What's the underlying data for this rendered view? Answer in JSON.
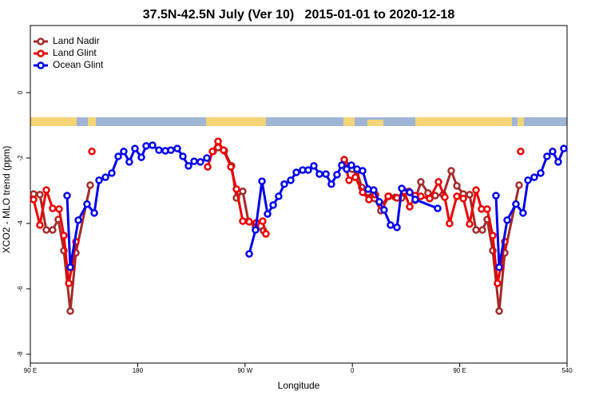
{
  "chart_data": {
    "type": "line",
    "title": "37.5N-42.5N July (Ver 10)   2015-01-01 to 2020-12-18",
    "x_label": "Longitude",
    "y_label": "XCO2 - MLO trend (ppm)",
    "xlim": [
      90,
      540
    ],
    "ylim": [
      -8.27,
      2.05
    ],
    "xticks": [
      {
        "value": 90,
        "label": "90 E"
      },
      180,
      {
        "value": 270,
        "label": "90 W"
      },
      {
        "value": 360,
        "label": "0"
      },
      {
        "value": 450,
        "label": "90 E"
      },
      540
    ],
    "yticks": [
      0,
      -2,
      -4,
      -6,
      -8
    ],
    "legend": "top-left",
    "series": [
      {
        "name": "Land Nadir",
        "color": "#a52a2a",
        "x": [
          92.7,
          98,
          103.4,
          108.7,
          113.4,
          118.1,
          123.5,
          128.2,
          140.2,
          null,
          243.3,
          247.4,
          252.7,
          258.7,
          262.8,
          268.1,
          272.8,
          278.8,
          285.5,
          null,
          353.8,
          359.8,
          363.9,
          367.9,
          373.2,
          378.6,
          383.9,
          390.6,
          396,
          401.4,
          407.4,
          412.7,
          417.4,
          423.4,
          429.5,
          436.2,
          442.9,
          447.6,
          453,
          458.3,
          463.7,
          469,
          473,
          477.7,
          483.1,
          487.8,
          499.8
        ],
        "values": [
          -3.1,
          -3.12,
          -4.2,
          -4.2,
          -3.88,
          -4.83,
          -6.68,
          -4.9,
          -2.83,
          null,
          -1.8,
          -1.68,
          -1.78,
          -2.24,
          -3.22,
          -3.02,
          -3.93,
          -4.12,
          -4.22,
          null,
          -2.17,
          -2.34,
          -2.41,
          -2.9,
          -3.05,
          -3.24,
          -3.61,
          -3.17,
          -3.2,
          -3.22,
          -3.02,
          -3.29,
          -2.73,
          -3.07,
          -3.15,
          -3.12,
          -2.39,
          -2.85,
          -3.1,
          -3.12,
          -4.2,
          -4.2,
          -3.88,
          -4.83,
          -6.68,
          -4.9,
          -2.83
        ]
      },
      {
        "name": "Land Glint",
        "color": "#ee0000",
        "x": [
          92.7,
          98,
          103.4,
          108.7,
          114.1,
          118.1,
          122.2,
          124.8,
          128.2,
          null,
          141.6,
          null,
          238.7,
          242.7,
          247.4,
          252,
          258.1,
          262.8,
          268.1,
          273.5,
          279.5,
          284.8,
          287.5,
          null,
          353.2,
          357.2,
          362.5,
          368.6,
          373.9,
          379.3,
          384.6,
          390,
          397.4,
          403.4,
          408.1,
          412.7,
          417.4,
          424.8,
          432.2,
          437.5,
          441.5,
          447.6,
          453,
          458.3,
          463.7,
          468.3,
          473,
          477.7,
          481.7,
          484.4,
          487.8,
          null,
          501.1
        ],
        "values": [
          -3.27,
          -4.05,
          -2.98,
          -3.54,
          -3.56,
          -4.37,
          -5.83,
          -5.34,
          -4.56,
          null,
          -1.8,
          null,
          -2.27,
          -1.8,
          -1.49,
          -1.76,
          -2.27,
          -2.95,
          -3.93,
          -3.95,
          -3.98,
          -3.93,
          -4.32,
          null,
          -2.05,
          -2.68,
          -2.59,
          -3.05,
          -3.27,
          -3.12,
          -3.46,
          -3.17,
          -3.22,
          -3.02,
          -3.49,
          -3.15,
          -3.17,
          -3.24,
          -2.73,
          -3.2,
          -4,
          -3.17,
          -3.24,
          -4.02,
          -2.98,
          -3.56,
          -3.56,
          -4.37,
          -5.83,
          -5.34,
          -4.56,
          null,
          -1.8
        ]
      },
      {
        "name": "Ocean Glint",
        "color": "#0000ee",
        "x": [
          120.8,
          123.5,
          130.2,
          137.5,
          143.6,
          147.6,
          153,
          158.3,
          163.7,
          168.3,
          173,
          177.7,
          183.1,
          187.1,
          192.4,
          197.8,
          203.2,
          207.8,
          213.2,
          217.9,
          222.6,
          227.3,
          232.6,
          238,
          null,
          273.5,
          278.8,
          284.2,
          288.9,
          293.6,
          298.2,
          302.9,
          308.3,
          313,
          318.3,
          323,
          327.7,
          332.4,
          337.8,
          342.4,
          347.1,
          351.1,
          355.2,
          359.2,
          363.9,
          368.6,
          373.2,
          377.9,
          382.6,
          386.6,
          392,
          397.4,
          401.4,
          408.1,
          412.7,
          431.5,
          null,
          480.4,
          483.1,
          489.8,
          497.1,
          503.1,
          507.2,
          512.5,
          517.9,
          523.2,
          527.9,
          532.6,
          537.3
        ],
        "values": [
          -3.15,
          -5.34,
          -3.9,
          -3.41,
          -3.68,
          -2.68,
          -2.59,
          -2.46,
          -1.95,
          -1.8,
          -2.12,
          -1.71,
          -1.98,
          -1.63,
          -1.61,
          -1.76,
          -1.78,
          -1.76,
          -1.71,
          -1.95,
          -2.24,
          -2.1,
          -2.12,
          -2,
          null,
          -4.93,
          -4.2,
          -2.71,
          -3.71,
          -3.44,
          -3.17,
          -2.8,
          -2.68,
          -2.44,
          -2.37,
          -2.37,
          -2.24,
          -2.49,
          -2.49,
          -2.8,
          -2.51,
          -2.22,
          -2.34,
          -2.22,
          -2.34,
          -2.39,
          -2.95,
          -2.98,
          -3.34,
          -3.59,
          -4.05,
          -4.12,
          -2.93,
          -3.05,
          -3.27,
          -3.54,
          null,
          -3.15,
          -5.34,
          -3.9,
          -3.41,
          -3.68,
          -2.68,
          -2.59,
          -2.46,
          -1.95,
          -1.8,
          -2.12,
          -1.71
        ]
      }
    ]
  }
}
